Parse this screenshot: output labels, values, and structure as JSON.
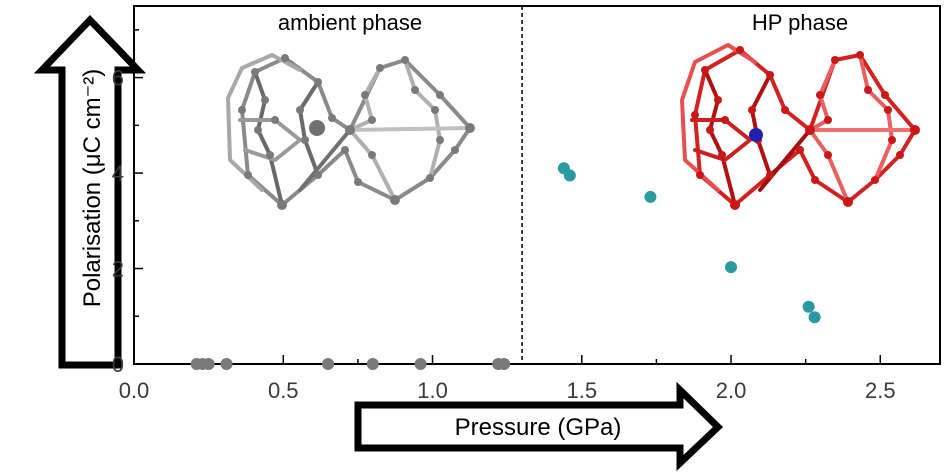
{
  "chart_data": {
    "type": "scatter",
    "xlabel": "Pressure (GPa)",
    "ylabel": "Polarisation (μC cm⁻²)",
    "xlim": [
      0.0,
      2.7
    ],
    "ylim": [
      0,
      7.5
    ],
    "xticks": [
      "0.0",
      "0.5",
      "1.0",
      "1.5",
      "2.0",
      "2.5"
    ],
    "yticks": [
      "0",
      "2",
      "4",
      "6"
    ],
    "grid": false,
    "phase_boundary": 1.3,
    "phase_labels": [
      "ambient phase",
      "HP phase"
    ],
    "series": [
      {
        "color": "#7a7a7a",
        "x": [
          0.21,
          0.23,
          0.25,
          0.31,
          0.65,
          0.8,
          0.96,
          1.22,
          1.24
        ],
        "y": [
          0,
          0,
          0,
          0,
          0,
          0,
          0,
          0,
          0
        ]
      },
      {
        "color": "#2a9aa0",
        "x": [
          1.44,
          1.46,
          1.73,
          2.0,
          2.26,
          2.28
        ],
        "y": [
          4.1,
          3.95,
          3.5,
          2.03,
          1.2,
          0.98
        ]
      }
    ]
  },
  "colors": {
    "ambient_structure": "#8a8a8a",
    "hp_structure": "#d42020",
    "ion_ambient": "#707070",
    "ion_hp": "#2020b0"
  }
}
